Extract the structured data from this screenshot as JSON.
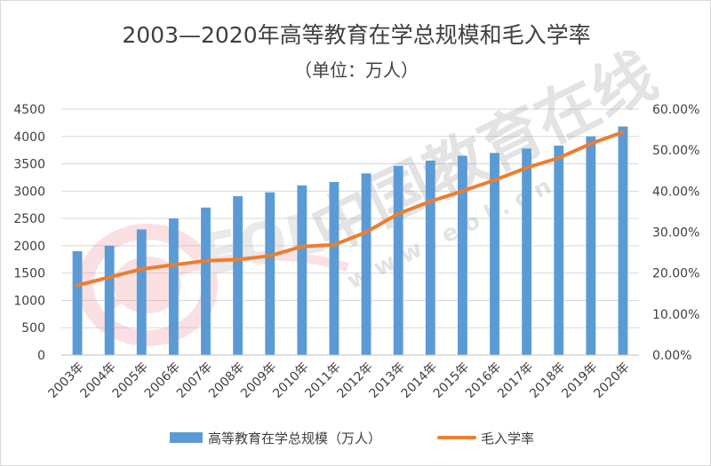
{
  "chart_data": {
    "type": "bar",
    "title": "2003—2020年高等教育在学总规模和毛入学率",
    "subtitle": "（单位：万人）",
    "categories": [
      "2003年",
      "2004年",
      "2005年",
      "2006年",
      "2007年",
      "2008年",
      "2009年",
      "2010年",
      "2011年",
      "2012年",
      "2013年",
      "2014年",
      "2015年",
      "2016年",
      "2017年",
      "2018年",
      "2019年",
      "2020年"
    ],
    "series": [
      {
        "name": "高等教育在学总规模（万人）",
        "type": "bar",
        "axis": "left",
        "color": "#5b9bd5",
        "values": [
          1900,
          2000,
          2300,
          2500,
          2700,
          2907,
          2979,
          3105,
          3167,
          3325,
          3460,
          3559,
          3647,
          3699,
          3779,
          3833,
          4002,
          4183
        ]
      },
      {
        "name": "毛入学率",
        "type": "line",
        "axis": "right",
        "color": "#ed7d31",
        "values": [
          17.0,
          19.0,
          21.0,
          22.0,
          23.0,
          23.3,
          24.2,
          26.5,
          26.9,
          30.0,
          34.5,
          37.5,
          40.0,
          42.7,
          45.7,
          48.1,
          51.6,
          54.4
        ]
      }
    ],
    "y_left": {
      "min": 0,
      "max": 4500,
      "step": 500,
      "ticks": [
        "0",
        "500",
        "1000",
        "1500",
        "2000",
        "2500",
        "3000",
        "3500",
        "4000",
        "4500"
      ]
    },
    "y_right": {
      "min": 0,
      "max": 60,
      "step": 10,
      "ticks": [
        "0.00%",
        "10.00%",
        "20.00%",
        "30.00%",
        "40.00%",
        "50.00%",
        "60.00%"
      ]
    },
    "grid": true,
    "legend_position": "bottom"
  },
  "watermark": {
    "brand": "EOL",
    "text_cn": "中国教育在线",
    "text_url": "w w w . e o l . c n"
  }
}
